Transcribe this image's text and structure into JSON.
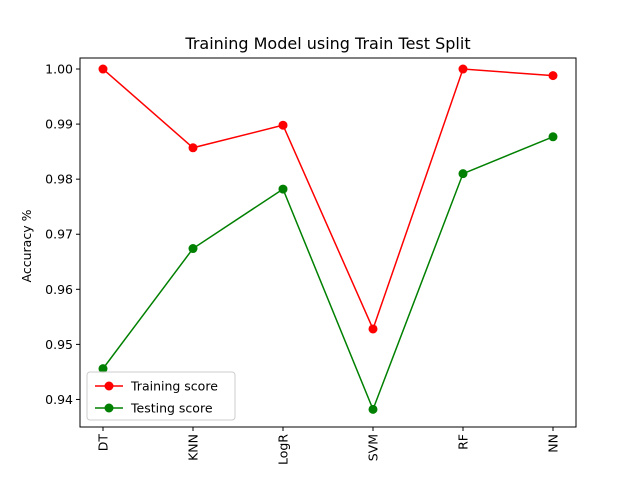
{
  "chart_data": {
    "type": "line",
    "title": "Training Model using Train Test Split",
    "xlabel": "",
    "ylabel": "Accuracy %",
    "categories": [
      "DT",
      "KNN",
      "LogR",
      "SVM",
      "RF",
      "NN"
    ],
    "ylim": [
      0.935,
      1.002
    ],
    "yticks": [
      "0.94",
      "0.95",
      "0.96",
      "0.97",
      "0.98",
      "0.99",
      "1.00"
    ],
    "grid": false,
    "legend_position": "lower-left",
    "series": [
      {
        "name": "Training score",
        "color": "#ff0000",
        "marker": "circle",
        "values": [
          1.0,
          0.9857,
          0.9898,
          0.9528,
          1.0,
          0.9988
        ]
      },
      {
        "name": "Testing score",
        "color": "#008000",
        "marker": "circle",
        "values": [
          0.9456,
          0.9674,
          0.9782,
          0.9382,
          0.981,
          0.9877
        ]
      }
    ]
  }
}
